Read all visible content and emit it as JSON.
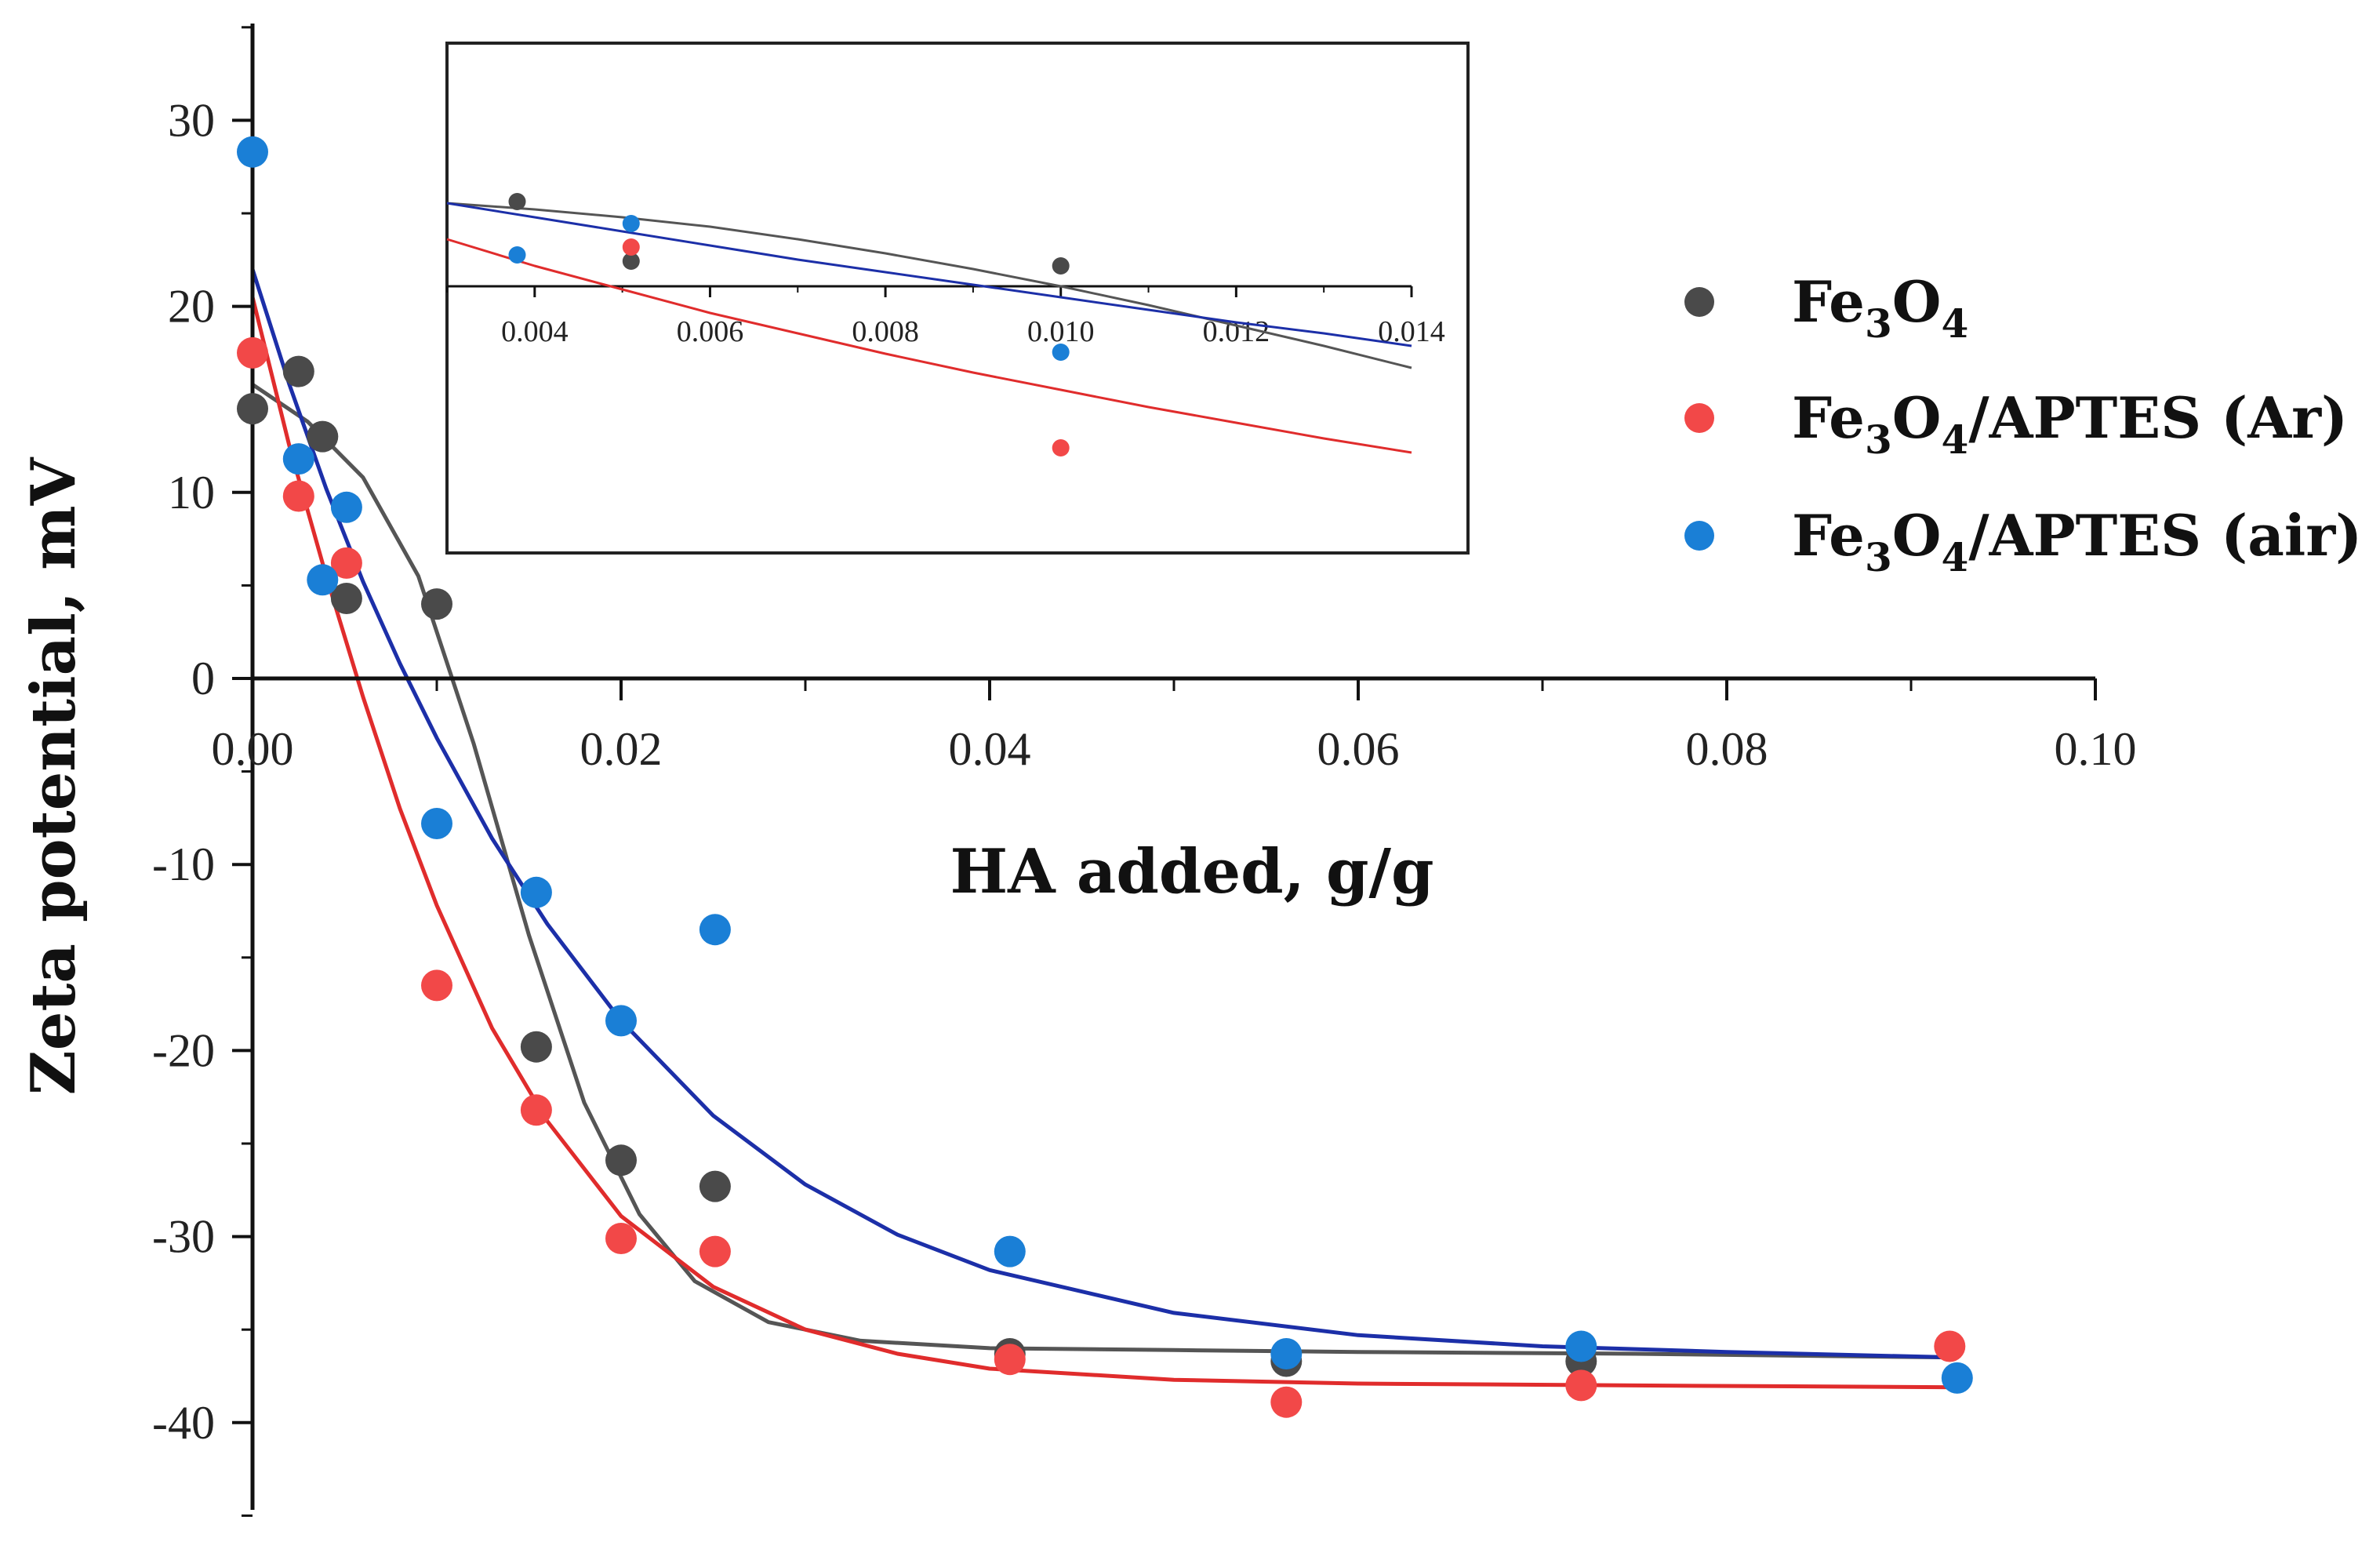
{
  "chart_data": {
    "type": "scatter",
    "title": "",
    "xlabel": "HA added, g/g",
    "ylabel": "Zeta potential, mV",
    "xlim": [
      0,
      0.1
    ],
    "ylim": [
      -45,
      35
    ],
    "x_ticks": [
      0.0,
      0.02,
      0.04,
      0.06,
      0.08,
      0.1
    ],
    "x_tick_labels": [
      "0.00",
      "0.02",
      "0.04",
      "0.06",
      "0.08",
      "0.10"
    ],
    "y_ticks": [
      -40,
      -30,
      -20,
      -10,
      0,
      10,
      20,
      30
    ],
    "y_tick_labels": [
      "-40",
      "-30",
      "-20",
      "-10",
      "0",
      "10",
      "20",
      "30"
    ],
    "legend_position": "right",
    "series": [
      {
        "name_main": "Fe",
        "name_sub1": "3",
        "name_mid": "O",
        "name_sub2": "4",
        "name_tail": "",
        "color": "#4a4a4a",
        "fit_color": "#555555",
        "x": [
          0.0,
          0.0025,
          0.0038,
          0.0051,
          0.01,
          0.0154,
          0.02,
          0.0251,
          0.0411,
          0.0561,
          0.0721
        ],
        "y": [
          14.5,
          16.5,
          13.0,
          4.3,
          4.0,
          -19.8,
          -25.9,
          -27.3,
          -36.3,
          -36.7,
          -36.7
        ],
        "fit_x": [
          0.0,
          0.003,
          0.006,
          0.009,
          0.012,
          0.015,
          0.018,
          0.021,
          0.024,
          0.028,
          0.033,
          0.04,
          0.05,
          0.06,
          0.075,
          0.0925
        ],
        "fit_y": [
          15.8,
          13.8,
          10.8,
          5.5,
          -3.5,
          -13.8,
          -22.8,
          -28.8,
          -32.4,
          -34.6,
          -35.6,
          -36.0,
          -36.1,
          -36.2,
          -36.3,
          -36.5
        ]
      },
      {
        "name_main": "Fe",
        "name_sub1": "3",
        "name_mid": "O",
        "name_sub2": "4",
        "name_tail": "/APTES (Ar)",
        "color": "#f24848",
        "fit_color": "#e02c2c",
        "x": [
          0.0,
          0.0025,
          0.0051,
          0.01,
          0.0154,
          0.02,
          0.0251,
          0.0411,
          0.0561,
          0.0721,
          0.0921
        ],
        "y": [
          17.5,
          9.8,
          6.2,
          -16.5,
          -23.2,
          -30.1,
          -30.8,
          -36.6,
          -38.9,
          -38.0,
          -35.9
        ],
        "fit_x": [
          0.0,
          0.002,
          0.004,
          0.006,
          0.008,
          0.01,
          0.013,
          0.016,
          0.02,
          0.025,
          0.03,
          0.035,
          0.04,
          0.05,
          0.06,
          0.075,
          0.0925
        ],
        "fit_y": [
          20.5,
          12.5,
          5.5,
          -1.0,
          -7.0,
          -12.2,
          -18.8,
          -23.8,
          -28.9,
          -32.7,
          -35.0,
          -36.3,
          -37.1,
          -37.7,
          -37.9,
          -38.0,
          -38.1
        ]
      },
      {
        "name_main": "Fe",
        "name_sub1": "3",
        "name_mid": "O",
        "name_sub2": "4",
        "name_tail": "/APTES (air)",
        "color": "#1a7fd6",
        "fit_color": "#1c2fa8",
        "x": [
          0.0,
          0.0025,
          0.0038,
          0.0051,
          0.01,
          0.0154,
          0.02,
          0.0251,
          0.0411,
          0.0561,
          0.0721,
          0.0925
        ],
        "y": [
          28.3,
          11.8,
          5.3,
          9.2,
          -7.8,
          -11.5,
          -18.4,
          -13.5,
          -30.8,
          -36.3,
          -35.9,
          -37.6
        ],
        "fit_x": [
          0.0,
          0.002,
          0.004,
          0.006,
          0.008,
          0.01,
          0.013,
          0.016,
          0.02,
          0.025,
          0.03,
          0.035,
          0.04,
          0.05,
          0.06,
          0.07,
          0.08,
          0.0925
        ],
        "fit_y": [
          22.0,
          15.8,
          10.2,
          5.2,
          0.8,
          -3.2,
          -8.6,
          -13.2,
          -18.4,
          -23.5,
          -27.2,
          -29.9,
          -31.8,
          -34.1,
          -35.3,
          -35.9,
          -36.2,
          -36.5
        ]
      }
    ],
    "inset": {
      "xlim": [
        0.003,
        0.014
      ],
      "ylim": [
        -14,
        9
      ],
      "x_ticks": [
        0.004,
        0.006,
        0.008,
        0.01,
        0.012,
        0.014
      ],
      "x_tick_labels": [
        "0.004",
        "0.006",
        "0.008",
        "0.010",
        "0.012",
        "0.014"
      ],
      "points": [
        {
          "series": 0,
          "x": 0.0038,
          "y": 5.4
        },
        {
          "series": 0,
          "x": 0.0051,
          "y": 1.6
        },
        {
          "series": 0,
          "x": 0.01,
          "y": 1.3
        },
        {
          "series": 1,
          "x": 0.0051,
          "y": 2.5
        },
        {
          "series": 1,
          "x": 0.01,
          "y": -10.3
        },
        {
          "series": 2,
          "x": 0.0038,
          "y": 2.0
        },
        {
          "series": 2,
          "x": 0.0051,
          "y": 4.0
        },
        {
          "series": 2,
          "x": 0.01,
          "y": -4.2
        }
      ],
      "fits": [
        {
          "series": 0,
          "x": [
            0.003,
            0.004,
            0.005,
            0.006,
            0.007,
            0.008,
            0.009,
            0.01,
            0.011,
            0.012,
            0.013,
            0.014
          ],
          "y": [
            5.3,
            4.9,
            4.4,
            3.8,
            3.0,
            2.1,
            1.1,
            0.0,
            -1.2,
            -2.5,
            -3.8,
            -5.2
          ]
        },
        {
          "series": 1,
          "x": [
            0.003,
            0.004,
            0.005,
            0.006,
            0.007,
            0.008,
            0.009,
            0.01,
            0.011,
            0.012,
            0.013,
            0.014
          ],
          "y": [
            3.0,
            1.3,
            -0.2,
            -1.7,
            -3.0,
            -4.3,
            -5.5,
            -6.6,
            -7.7,
            -8.7,
            -9.7,
            -10.6
          ]
        },
        {
          "series": 2,
          "x": [
            0.003,
            0.004,
            0.005,
            0.006,
            0.007,
            0.008,
            0.009,
            0.01,
            0.011,
            0.012,
            0.013,
            0.014
          ],
          "y": [
            5.3,
            4.4,
            3.5,
            2.6,
            1.7,
            0.9,
            0.1,
            -0.7,
            -1.5,
            -2.3,
            -3.0,
            -3.8
          ]
        }
      ]
    }
  }
}
